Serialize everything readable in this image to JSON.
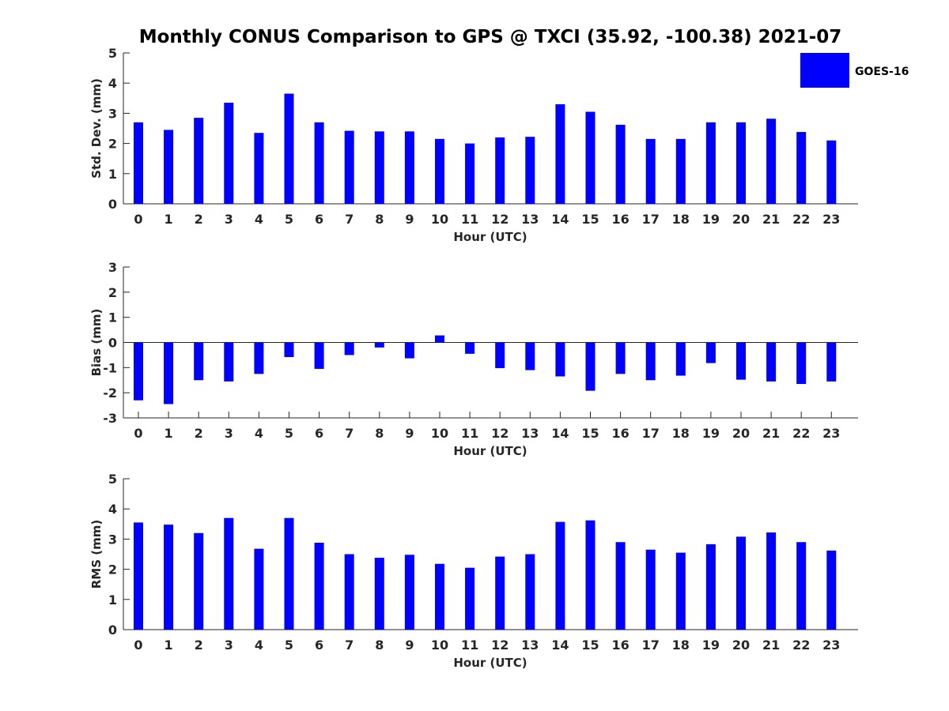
{
  "chart_data": {
    "type": "bar",
    "title": "Monthly CONUS Comparison to GPS @ TXCI (35.92, -100.38) 2021-07",
    "legend": {
      "label": "GOES-16",
      "placement": "top-right"
    },
    "bar_color": "#0000ff",
    "categories": [
      "0",
      "1",
      "2",
      "3",
      "4",
      "5",
      "6",
      "7",
      "8",
      "9",
      "10",
      "11",
      "12",
      "13",
      "14",
      "15",
      "16",
      "17",
      "18",
      "19",
      "20",
      "21",
      "22",
      "23"
    ],
    "panels": [
      {
        "ylabel": "Std. Dev. (mm)",
        "xlabel": "Hour (UTC)",
        "ylim": [
          0,
          5
        ],
        "yticks": [
          0,
          1,
          2,
          3,
          4,
          5
        ],
        "values": [
          2.7,
          2.45,
          2.85,
          3.35,
          2.35,
          3.65,
          2.7,
          2.42,
          2.4,
          2.4,
          2.15,
          2.0,
          2.2,
          2.22,
          3.3,
          3.05,
          2.62,
          2.15,
          2.15,
          2.7,
          2.7,
          2.82,
          2.38,
          2.1
        ]
      },
      {
        "ylabel": "Bias (mm)",
        "xlabel": "Hour (UTC)",
        "ylim": [
          -3,
          3
        ],
        "yticks": [
          -3,
          -2,
          -1,
          0,
          1,
          2,
          3
        ],
        "values": [
          -2.3,
          -2.45,
          -1.5,
          -1.55,
          -1.25,
          -0.58,
          -1.05,
          -0.5,
          -0.2,
          -0.63,
          0.28,
          -0.45,
          -1.02,
          -1.1,
          -1.35,
          -1.92,
          -1.25,
          -1.5,
          -1.32,
          -0.82,
          -1.48,
          -1.55,
          -1.65,
          -1.55
        ]
      },
      {
        "ylabel": "RMS (mm)",
        "xlabel": "Hour (UTC)",
        "ylim": [
          0,
          5
        ],
        "yticks": [
          0,
          1,
          2,
          3,
          4,
          5
        ],
        "values": [
          3.55,
          3.48,
          3.2,
          3.7,
          2.68,
          3.7,
          2.88,
          2.5,
          2.38,
          2.48,
          2.18,
          2.05,
          2.42,
          2.5,
          3.57,
          3.62,
          2.9,
          2.65,
          2.55,
          2.83,
          3.08,
          3.22,
          2.9,
          2.62
        ]
      }
    ]
  }
}
